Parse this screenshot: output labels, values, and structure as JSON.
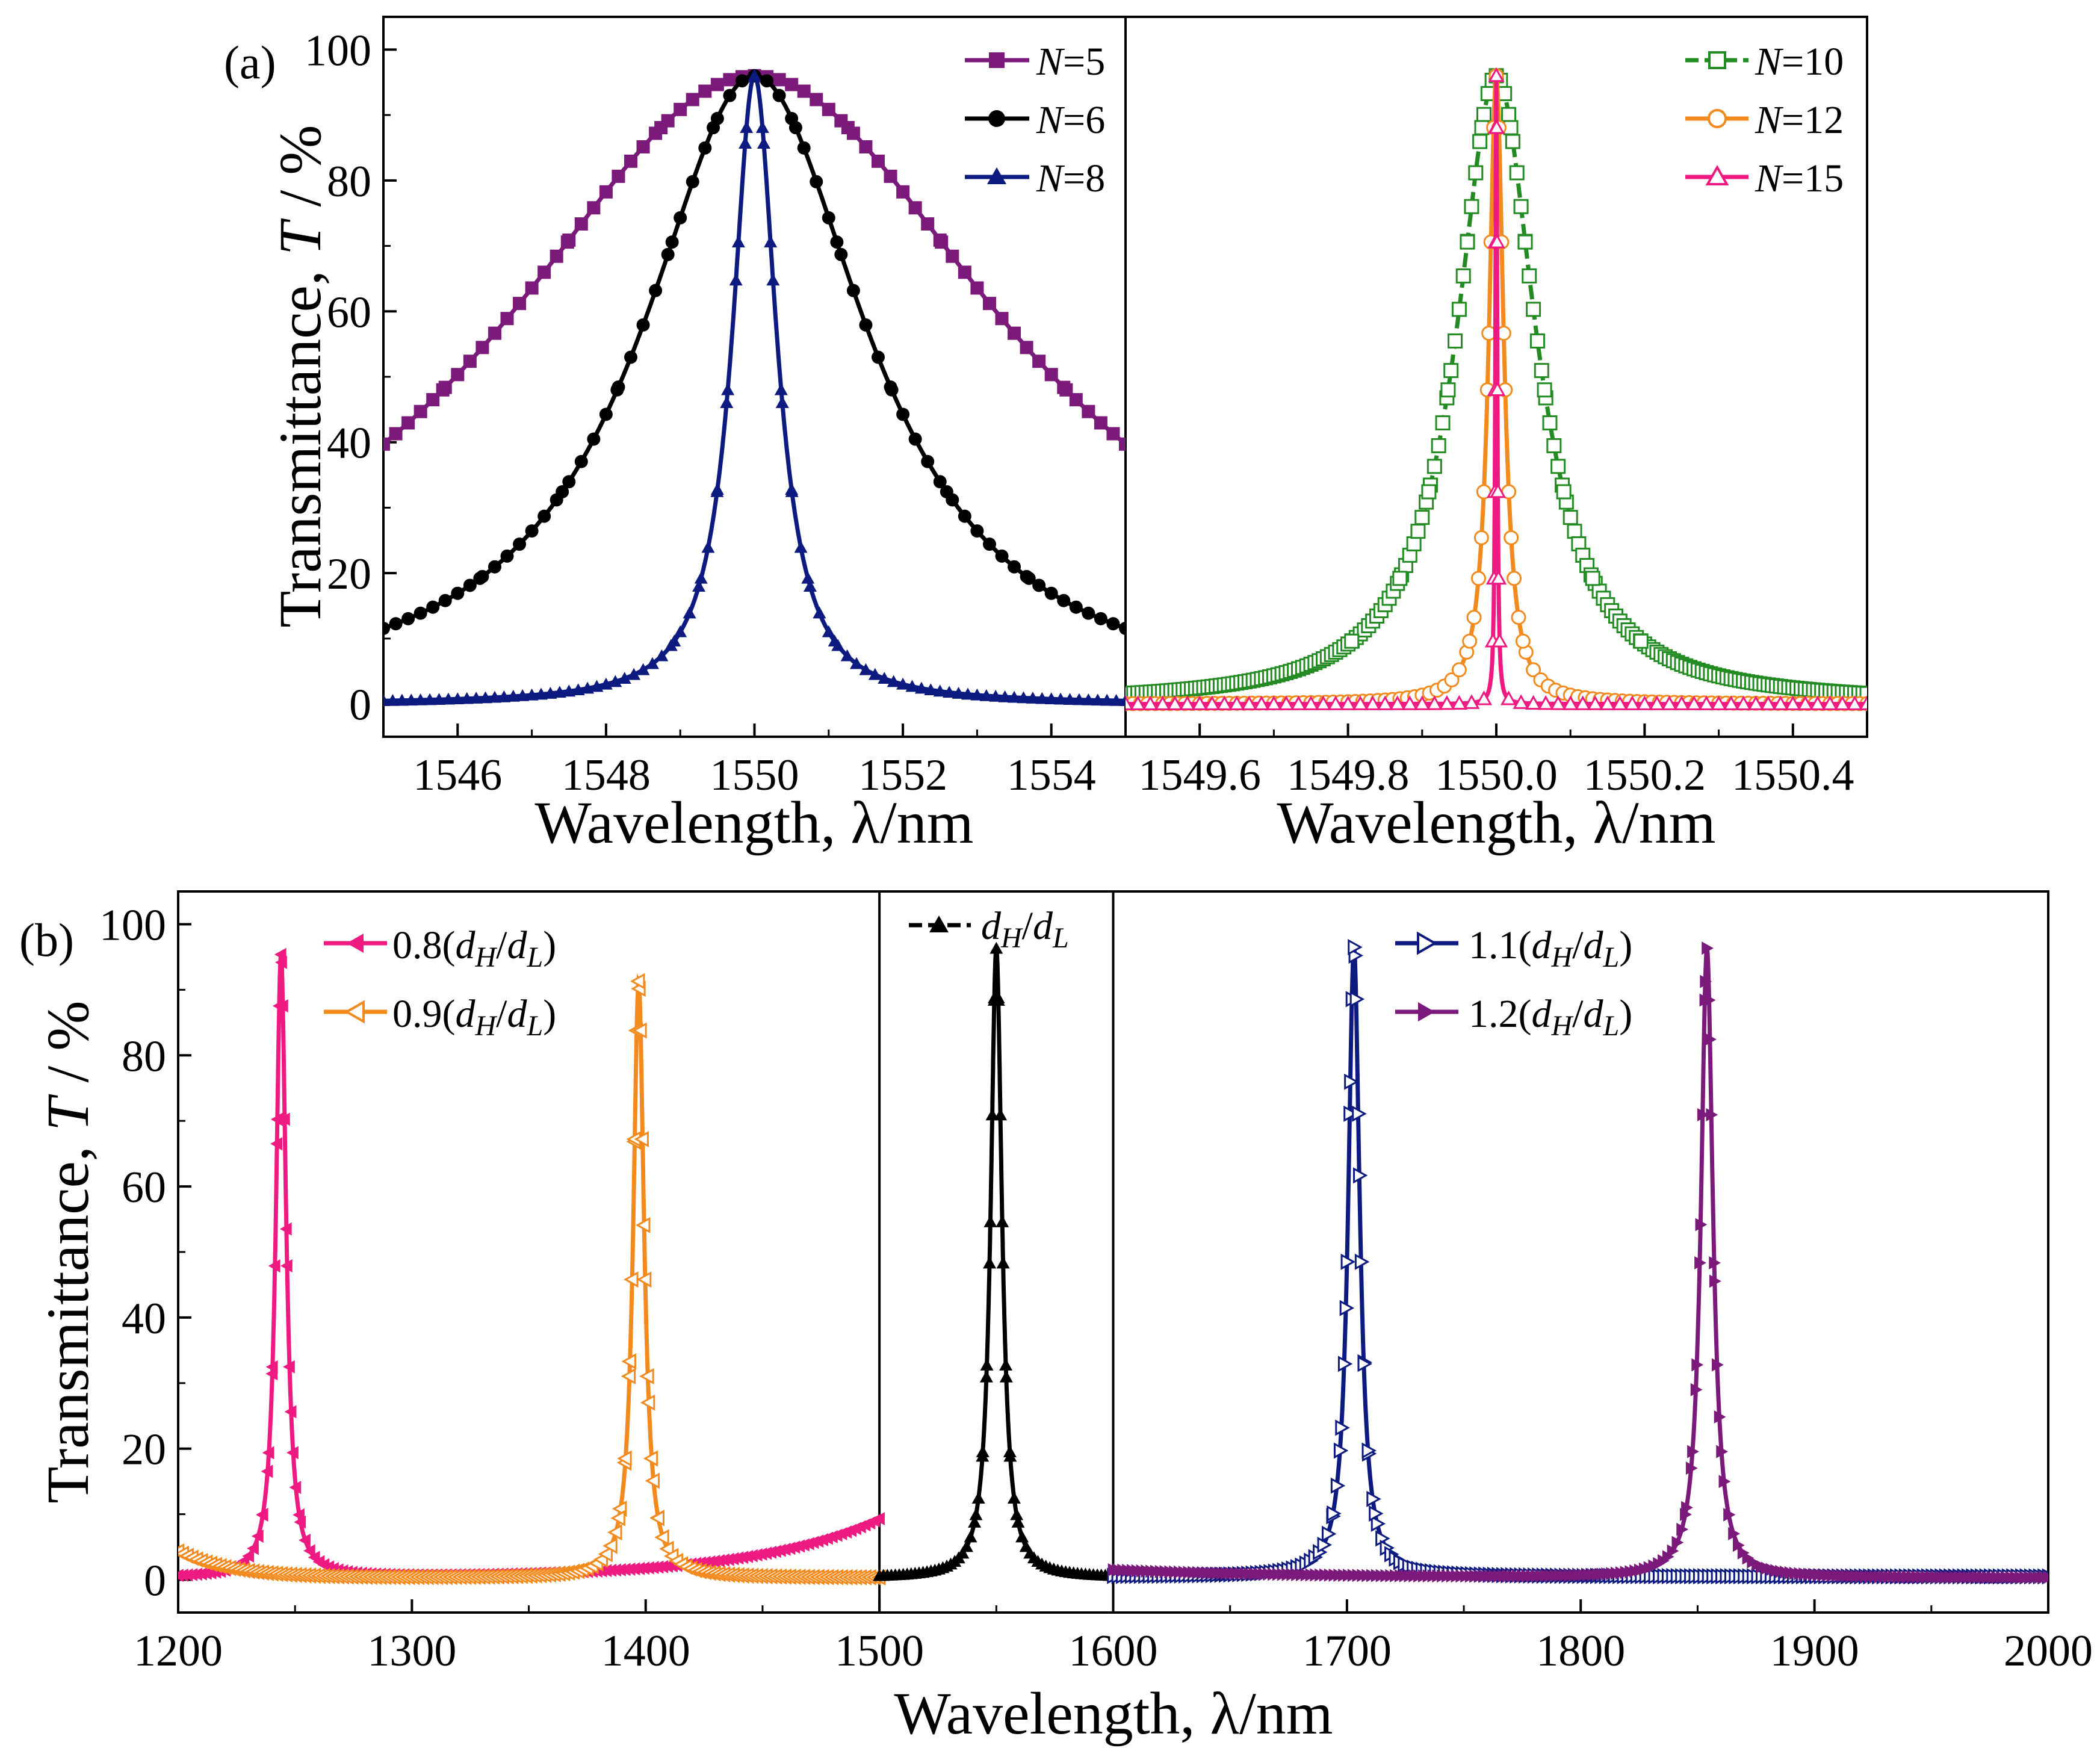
{
  "figure": {
    "description_labels": {
      "a": "(a)",
      "b": "(b)"
    }
  },
  "chart_data": [
    {
      "id": "a-left",
      "type": "line",
      "panel_label": "(a)",
      "xlabel": "Wavelength, λ/nm",
      "ylabel_main": "Transmittance, ",
      "ylabel_var": "T",
      "ylabel_unit": " / %",
      "xlim": [
        1545,
        1555
      ],
      "ylim": [
        -5,
        105
      ],
      "xticks": [
        1546,
        1548,
        1550,
        1552,
        1554
      ],
      "yticks": [
        0,
        20,
        40,
        60,
        80,
        100
      ],
      "series": [
        {
          "name": "N=5",
          "label_var": "N",
          "label_rest": "=5",
          "color": "#7b1a7b",
          "marker": "square",
          "filled": true,
          "center": 1550,
          "peak": 96,
          "hw": 4.2,
          "markers": 61
        },
        {
          "name": "N=6",
          "label_var": "N",
          "label_rest": "=6",
          "color": "#000000",
          "marker": "circle",
          "filled": true,
          "center": 1550,
          "peak": 96,
          "hw": 1.85,
          "markers": 61
        },
        {
          "name": "N=8",
          "label_var": "N",
          "label_rest": "=8",
          "color": "#0d1a80",
          "marker": "triangle",
          "filled": true,
          "center": 1550,
          "peak": 96,
          "hw": 0.36,
          "markers": 81
        }
      ]
    },
    {
      "id": "a-right",
      "type": "line",
      "xlabel": "Wavelength, λ/nm",
      "xlim": [
        1549.5,
        1550.5
      ],
      "ylim": [
        -5,
        105
      ],
      "xticks": [
        1549.6,
        1549.8,
        1550.0,
        1550.2,
        1550.4
      ],
      "xtick_labels": [
        "1549.6",
        "1549.8",
        "1550.0",
        "1550.2",
        "1550.4"
      ],
      "series": [
        {
          "name": "N=10",
          "label_var": "N",
          "label_rest": "=10",
          "color": "#228b22",
          "marker": "square",
          "filled": false,
          "dashed": true,
          "center": 1550,
          "peak": 96,
          "hw": 0.065,
          "markers": 181
        },
        {
          "name": "N=12",
          "label_var": "N",
          "label_rest": "=12",
          "color": "#f28a1e",
          "marker": "circle",
          "filled": false,
          "center": 1550,
          "peak": 96,
          "hw": 0.012,
          "markers": 101
        },
        {
          "name": "N=15",
          "label_var": "N",
          "label_rest": "=15",
          "color": "#ee1a82",
          "marker": "triangle",
          "filled": false,
          "center": 1550,
          "peak": 96,
          "hw": 0.0015,
          "markers": 61
        }
      ]
    },
    {
      "id": "b",
      "type": "line",
      "panel_label": "(b)",
      "xlabel": "Wavelength, λ/nm",
      "ylabel_main": "Transmittance, ",
      "ylabel_var": "T",
      "ylabel_unit": " / %",
      "xlim": [
        1200,
        2000
      ],
      "ylim": [
        -5,
        105
      ],
      "xticks": [
        1200,
        1300,
        1400,
        1500,
        1600,
        1700,
        1800,
        1900,
        2000
      ],
      "yticks": [
        0,
        20,
        40,
        60,
        80,
        100
      ],
      "separators": [
        1500,
        1600
      ],
      "series": [
        {
          "name": "0.8(dH/dL)",
          "label_pre": "0.8(",
          "label_post": ")",
          "color": "#ee1a82",
          "marker": "tri-left",
          "filled": true,
          "center": 1244,
          "peak": 95,
          "hw": 2.6,
          "base": 0.3,
          "right_rise": true,
          "markers": 150
        },
        {
          "name": "0.9(dH/dL)",
          "label_pre": "0.9(",
          "label_post": ")",
          "color": "#f28a1e",
          "marker": "tri-left",
          "filled": false,
          "center": 1397,
          "peak": 91,
          "hw": 2.8,
          "base": 0.3,
          "left_rise": true,
          "markers": 150
        },
        {
          "name": "dH/dL",
          "label_pre": "",
          "label_post": "",
          "color": "#000000",
          "marker": "triangle",
          "filled": true,
          "center": 1550,
          "peak": 96,
          "hw": 2.9,
          "base": 0.3,
          "markers": 60
        },
        {
          "name": "1.1(dH/dL)",
          "label_pre": "1.1(",
          "label_post": ")",
          "color": "#0d1a80",
          "marker": "tri-right",
          "filled": false,
          "center": 1703,
          "peak": 96,
          "hw": 3.0,
          "base": 0.5,
          "markers": 210
        },
        {
          "name": "1.2(dH/dL)",
          "label_pre": "1.2(",
          "label_post": ")",
          "color": "#7b1a7b",
          "marker": "tri-right",
          "filled": true,
          "center": 1854,
          "peak": 96,
          "hw": 3.1,
          "base": 0.3,
          "left_hump": true,
          "markers": 200
        }
      ]
    }
  ]
}
